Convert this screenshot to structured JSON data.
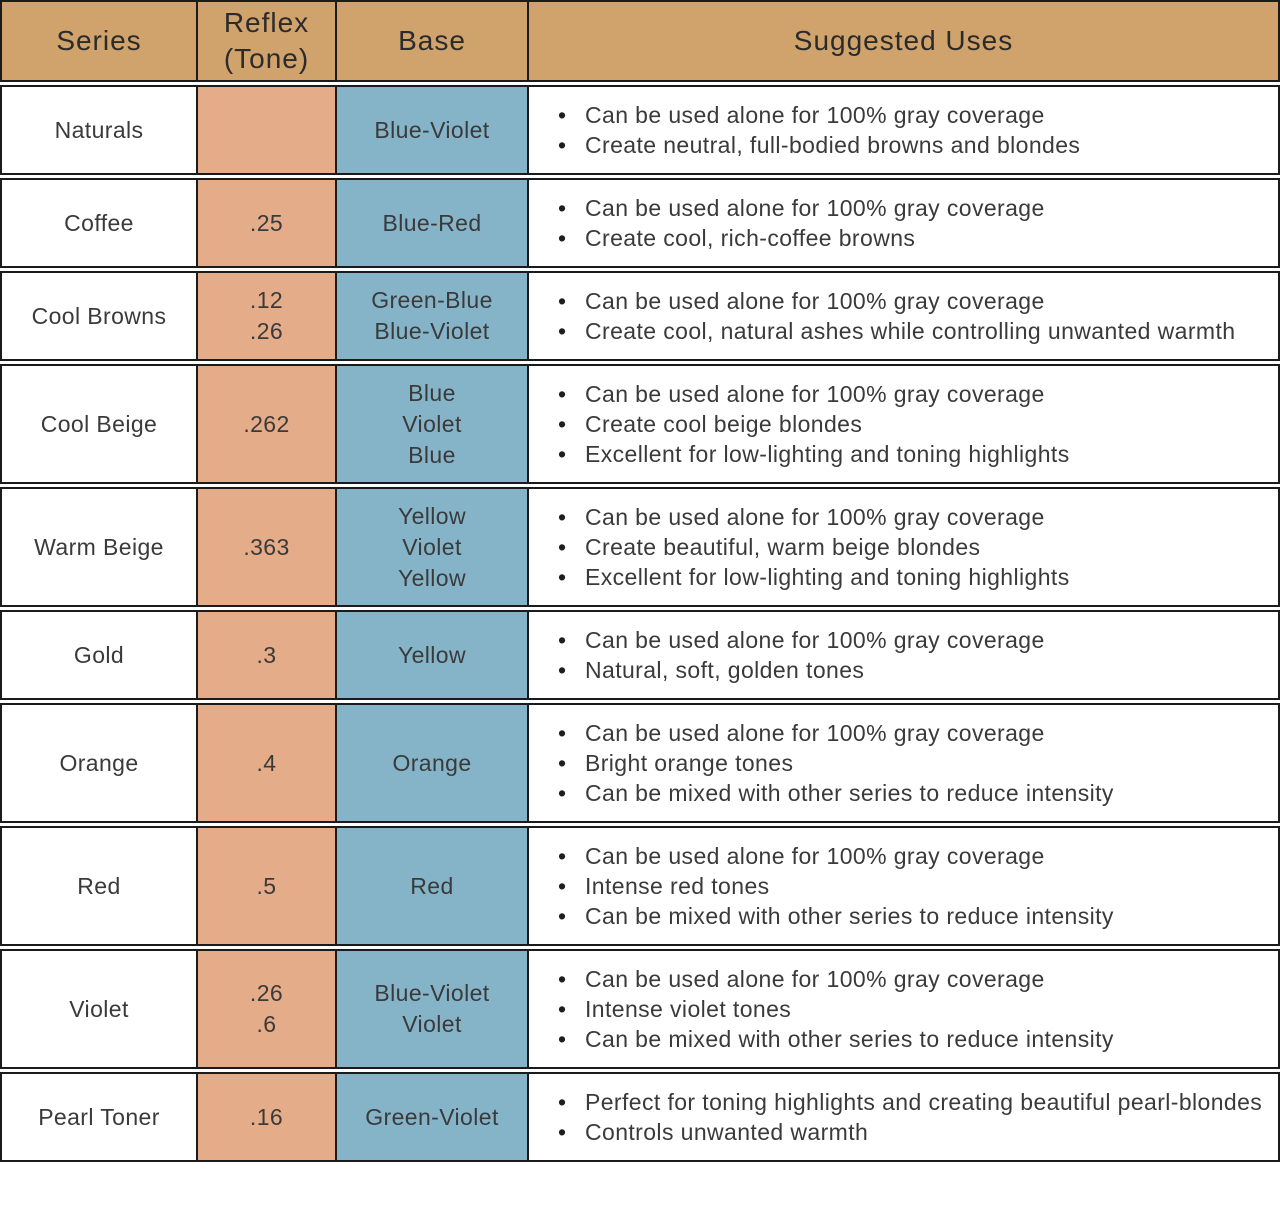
{
  "table": {
    "headers": [
      "Series",
      "Reflex\n(Tone)",
      "Base",
      "Suggested Uses"
    ],
    "rows": [
      {
        "series": "Naturals",
        "reflex": [],
        "base": [
          "Blue-Violet"
        ],
        "uses": [
          "Can be used alone for 100% gray coverage",
          "Create neutral, full-bodied browns and blondes"
        ]
      },
      {
        "series": "Coffee",
        "reflex": [
          ".25"
        ],
        "base": [
          "Blue-Red"
        ],
        "uses": [
          "Can be used alone for 100% gray coverage",
          "Create cool, rich-coffee browns"
        ]
      },
      {
        "series": "Cool Browns",
        "reflex": [
          ".12",
          ".26"
        ],
        "base": [
          "Green-Blue",
          "Blue-Violet"
        ],
        "uses": [
          "Can be used alone for 100% gray coverage",
          "Create cool, natural ashes while controlling unwanted warmth"
        ]
      },
      {
        "series": "Cool Beige",
        "reflex": [
          ".262"
        ],
        "base": [
          "Blue",
          "Violet",
          "Blue"
        ],
        "uses": [
          "Can be used alone for 100% gray coverage",
          "Create cool beige blondes",
          "Excellent for low-lighting and toning highlights"
        ]
      },
      {
        "series": "Warm Beige",
        "reflex": [
          ".363"
        ],
        "base": [
          "Yellow",
          "Violet",
          "Yellow"
        ],
        "uses": [
          "Can be used alone for 100% gray coverage",
          "Create beautiful, warm beige blondes",
          "Excellent for low-lighting and toning highlights"
        ]
      },
      {
        "series": "Gold",
        "reflex": [
          ".3"
        ],
        "base": [
          "Yellow"
        ],
        "uses": [
          "Can be used alone for 100% gray coverage",
          "Natural, soft, golden tones"
        ]
      },
      {
        "series": "Orange",
        "reflex": [
          ".4"
        ],
        "base": [
          "Orange"
        ],
        "uses": [
          "Can be used alone for 100% gray coverage",
          "Bright orange tones",
          "Can be mixed with other series to reduce intensity"
        ]
      },
      {
        "series": "Red",
        "reflex": [
          ".5"
        ],
        "base": [
          "Red"
        ],
        "uses": [
          "Can be used alone for 100% gray coverage",
          "Intense red tones",
          "Can be mixed with other series to reduce intensity"
        ]
      },
      {
        "series": "Violet",
        "reflex": [
          ".26",
          ".6"
        ],
        "base": [
          "Blue-Violet",
          "Violet"
        ],
        "uses": [
          "Can be used alone for 100% gray coverage",
          "Intense violet tones",
          "Can be mixed with other series to reduce intensity"
        ]
      },
      {
        "series": "Pearl Toner",
        "reflex": [
          ".16"
        ],
        "base": [
          "Green-Violet"
        ],
        "uses": [
          "Perfect for toning highlights and creating beautiful pearl-blondes",
          "Controls unwanted warmth"
        ]
      }
    ]
  },
  "colors": {
    "header_bg": "#d0a26c",
    "reflex_bg": "#e4ac89",
    "base_bg": "#85b4c9",
    "border": "#1b1b1b",
    "text": "#3a3a3a"
  }
}
